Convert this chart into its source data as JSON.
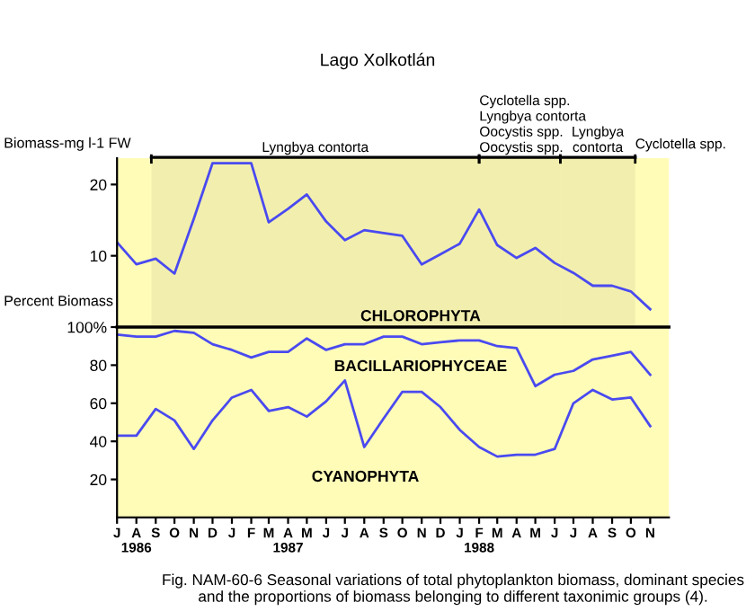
{
  "chart_data": [
    {
      "type": "line",
      "title": "Lago Xolkotlán",
      "ylabel": "Biomass-mg l-1 FW",
      "x": [
        "1986-07",
        "1986-08",
        "1986-09",
        "1986-10",
        "1986-11",
        "1986-12",
        "1987-01",
        "1987-02",
        "1987-03",
        "1987-04",
        "1987-05",
        "1987-06",
        "1987-07",
        "1987-08",
        "1987-09",
        "1987-10",
        "1987-11",
        "1987-12",
        "1988-01",
        "1988-02",
        "1988-03",
        "1988-04",
        "1988-05",
        "1988-06",
        "1988-07",
        "1988-08",
        "1988-09",
        "1988-10",
        "1988-11"
      ],
      "series": [
        {
          "color": "#4a4af0",
          "values": [
            11.9,
            8.8,
            9.6,
            7.5,
            15.2,
            23.0,
            23.0,
            23.0,
            14.7,
            16.6,
            18.6,
            14.8,
            12.2,
            13.6,
            13.2,
            12.8,
            8.8,
            10.2,
            11.7,
            16.5,
            11.5,
            9.7,
            11.1,
            9.0,
            7.6,
            5.8,
            5.8,
            5.0,
            2.5
          ]
        }
      ],
      "xlim": [
        "1986-07",
        "1988-12"
      ],
      "ylim": [
        0,
        23.7
      ],
      "yticks": [
        10,
        20
      ],
      "tick_labels": "y",
      "grid": false,
      "legend": false,
      "bands": [
        {
          "axis": "x",
          "from": "1986-08-25",
          "to": "1988-02-01",
          "label": "Lyngbya contorta",
          "color": "#000000"
        },
        {
          "axis": "x",
          "from": "1988-02-01",
          "to": "1988-06-10",
          "label": "Cyclotella spp.\nLyngbya contorta\nOocystis spp.\nOocystis spp.",
          "color": "#000000"
        },
        {
          "axis": "x",
          "from": "1988-06-10",
          "to": "1988-10-08",
          "label": "Lyngbya\ncontorta",
          "color": "#000000"
        }
      ],
      "annotations": [
        "Cyclotella spp.",
        "CHLOROPHYTA"
      ]
    },
    {
      "type": "line",
      "ylabel": "Percent Biomass",
      "x": [
        "1986-07",
        "1986-08",
        "1986-09",
        "1986-10",
        "1986-11",
        "1986-12",
        "1987-01",
        "1987-02",
        "1987-03",
        "1987-04",
        "1987-05",
        "1987-06",
        "1987-07",
        "1987-08",
        "1987-09",
        "1987-10",
        "1987-11",
        "1987-12",
        "1988-01",
        "1988-02",
        "1988-03",
        "1988-04",
        "1988-05",
        "1988-06",
        "1988-07",
        "1988-08",
        "1988-09",
        "1988-10",
        "1988-11"
      ],
      "series": [
        {
          "color": "#4a4af0",
          "values": [
            96,
            95,
            95,
            98,
            97,
            91,
            88,
            84,
            87,
            87,
            94,
            88,
            91,
            91,
            95,
            95,
            91,
            92,
            93,
            93,
            90,
            89,
            69,
            75,
            77,
            83,
            85,
            87,
            75
          ]
        },
        {
          "color": "#4a4af0",
          "values": [
            43,
            43,
            57,
            51,
            36,
            51,
            63,
            67,
            56,
            58,
            53,
            61,
            72,
            37,
            52,
            66,
            66,
            58,
            46,
            37,
            32,
            33,
            33,
            36,
            60,
            67,
            62,
            63,
            48
          ]
        }
      ],
      "xlim": [
        "1986-07",
        "1988-12"
      ],
      "ylim": [
        0,
        100
      ],
      "yticks": [
        {
          "value": 100,
          "label": "100%"
        },
        80,
        60,
        40,
        20
      ],
      "xticks": [
        {
          "value": "1986-07",
          "label": "J"
        },
        {
          "value": "1986-08",
          "label": "A\n1986"
        },
        {
          "value": "1986-09",
          "label": "S"
        },
        {
          "value": "1986-10",
          "label": "O"
        },
        {
          "value": "1986-11",
          "label": "N"
        },
        {
          "value": "1986-12",
          "label": "D"
        },
        {
          "value": "1987-01",
          "label": "J"
        },
        {
          "value": "1987-02",
          "label": "F"
        },
        {
          "value": "1987-03",
          "label": "M"
        },
        {
          "value": "1987-04",
          "label": "A\n1987"
        },
        {
          "value": "1987-05",
          "label": "M"
        },
        {
          "value": "1987-06",
          "label": "J"
        },
        {
          "value": "1987-07",
          "label": "J"
        },
        {
          "value": "1987-08",
          "label": "A"
        },
        {
          "value": "1987-09",
          "label": "S"
        },
        {
          "value": "1987-10",
          "label": "O"
        },
        {
          "value": "1987-11",
          "label": "N"
        },
        {
          "value": "1987-12",
          "label": "D"
        },
        {
          "value": "1988-01",
          "label": "J"
        },
        {
          "value": "1988-02",
          "label": "F\n1988"
        },
        {
          "value": "1988-03",
          "label": "M"
        },
        {
          "value": "1988-04",
          "label": "A"
        },
        {
          "value": "1988-05",
          "label": "M"
        },
        {
          "value": "1988-06",
          "label": "J"
        },
        {
          "value": "1988-07",
          "label": "J"
        },
        {
          "value": "1988-08",
          "label": "A"
        },
        {
          "value": "1988-09",
          "label": "S"
        },
        {
          "value": "1988-10",
          "label": "O"
        },
        {
          "value": "1988-11",
          "label": "N"
        }
      ],
      "grid": false,
      "legend": false,
      "ref_lines": [
        {
          "axis": "y",
          "value": 100,
          "color": "#000000"
        }
      ],
      "annotations": [
        "BACILLARIOPHYCEAE",
        "CYANOPHYTA",
        "Fig. NAM-60-6 Seasonal variations of total phytoplankton biomass, dominant species and the proportions of biomass belonging to different taxonimic groups (4)."
      ]
    }
  ]
}
